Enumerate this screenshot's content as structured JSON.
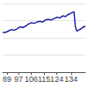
{
  "chart_data": {
    "type": "line",
    "color": "#2323a6",
    "x": [
      86,
      88,
      90,
      92,
      94,
      96,
      98,
      100,
      102,
      104,
      106,
      108,
      110,
      112,
      114,
      116,
      118,
      120,
      122,
      124,
      126,
      128,
      130,
      132,
      134,
      136,
      137,
      138,
      140,
      142,
      144
    ],
    "values": [
      58,
      58,
      60,
      62,
      61,
      63,
      66,
      65,
      67,
      70,
      72,
      71,
      73,
      74,
      73,
      76,
      77,
      76,
      78,
      80,
      79,
      82,
      81,
      84,
      86,
      88,
      66,
      60,
      62,
      65,
      67
    ],
    "xlim": [
      86,
      144
    ],
    "xticks": [
      89,
      97,
      106,
      115,
      124,
      134
    ],
    "ylim": [
      0,
      100
    ],
    "yticks": [
      0,
      25,
      50,
      75,
      100
    ],
    "grid": true,
    "tick_labels": "x"
  }
}
